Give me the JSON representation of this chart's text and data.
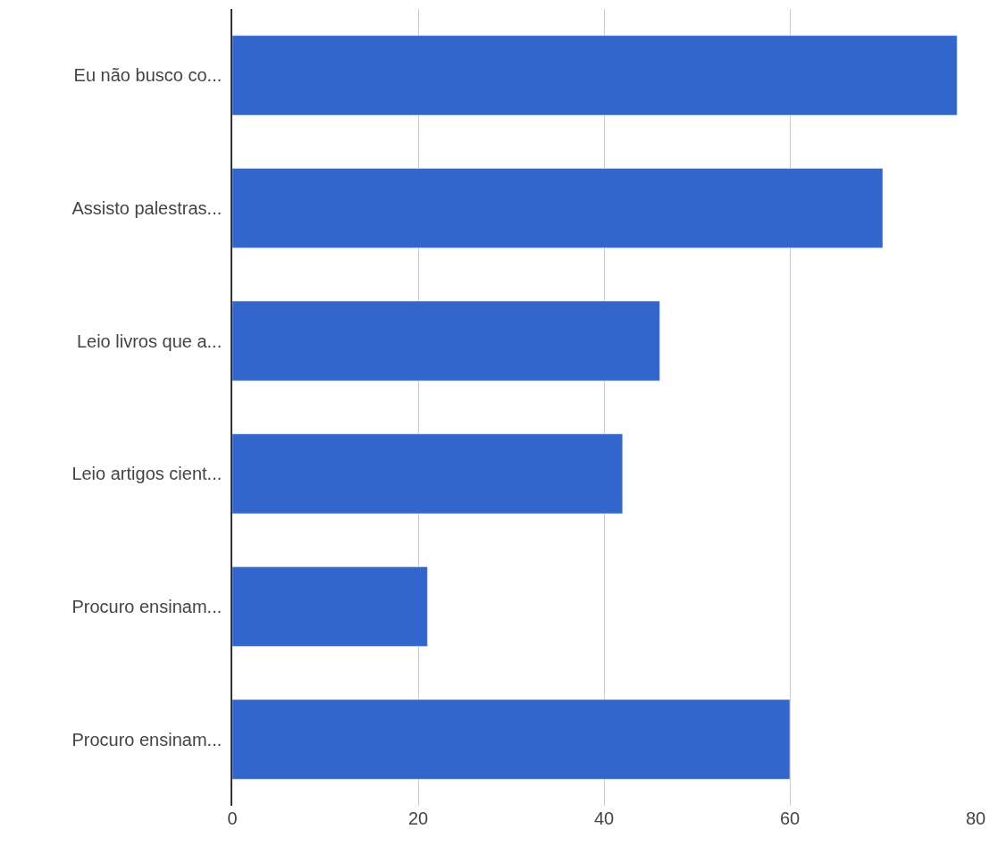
{
  "chart_data": {
    "type": "bar",
    "orientation": "horizontal",
    "categories": [
      "Eu não busco co...",
      "Assisto palestras...",
      "Leio livros que a...",
      "Leio artigos cient...",
      "Procuro ensinam...",
      "Procuro ensinam..."
    ],
    "values": [
      78,
      70,
      46,
      42,
      21,
      60
    ],
    "color": "#3366cc",
    "xlim": [
      0,
      80
    ],
    "xticks": [
      0,
      20,
      40,
      60,
      80
    ],
    "grid": "x"
  }
}
